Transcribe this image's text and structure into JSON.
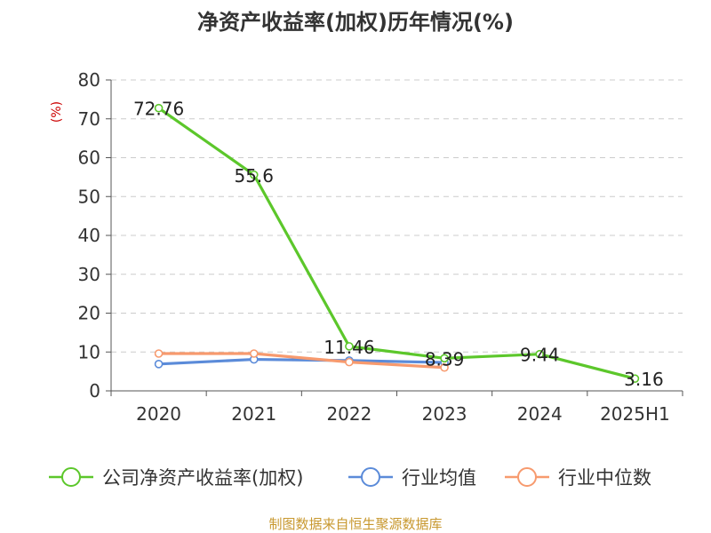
{
  "chart_data": {
    "type": "line",
    "title": "净资产收益率(加权)历年情况(%)",
    "ylabel": "(%)",
    "xlabel": "",
    "categories": [
      "2020",
      "2021",
      "2022",
      "2023",
      "2024",
      "2025H1"
    ],
    "ylim": [
      0,
      80
    ],
    "yticks": [
      0,
      10,
      20,
      30,
      40,
      50,
      60,
      70,
      80
    ],
    "grid": true,
    "legend_position": "bottom",
    "series": [
      {
        "name": "公司净资产收益率(加权)",
        "color": "#5cc72b",
        "values": [
          72.76,
          55.6,
          11.46,
          8.39,
          9.44,
          3.16
        ],
        "labels": [
          "72.76",
          "55.6",
          "11.46",
          "8.39",
          "9.44",
          "3.16"
        ]
      },
      {
        "name": "行业均值",
        "color": "#5b8bd9",
        "values": [
          6.9,
          8.1,
          7.8,
          7.3,
          null,
          null
        ]
      },
      {
        "name": "行业中位数",
        "color": "#f79a6e",
        "values": [
          9.6,
          9.6,
          7.4,
          6.0,
          null,
          null
        ]
      }
    ]
  },
  "footer": {
    "source": "制图数据来自恒生聚源数据库"
  }
}
